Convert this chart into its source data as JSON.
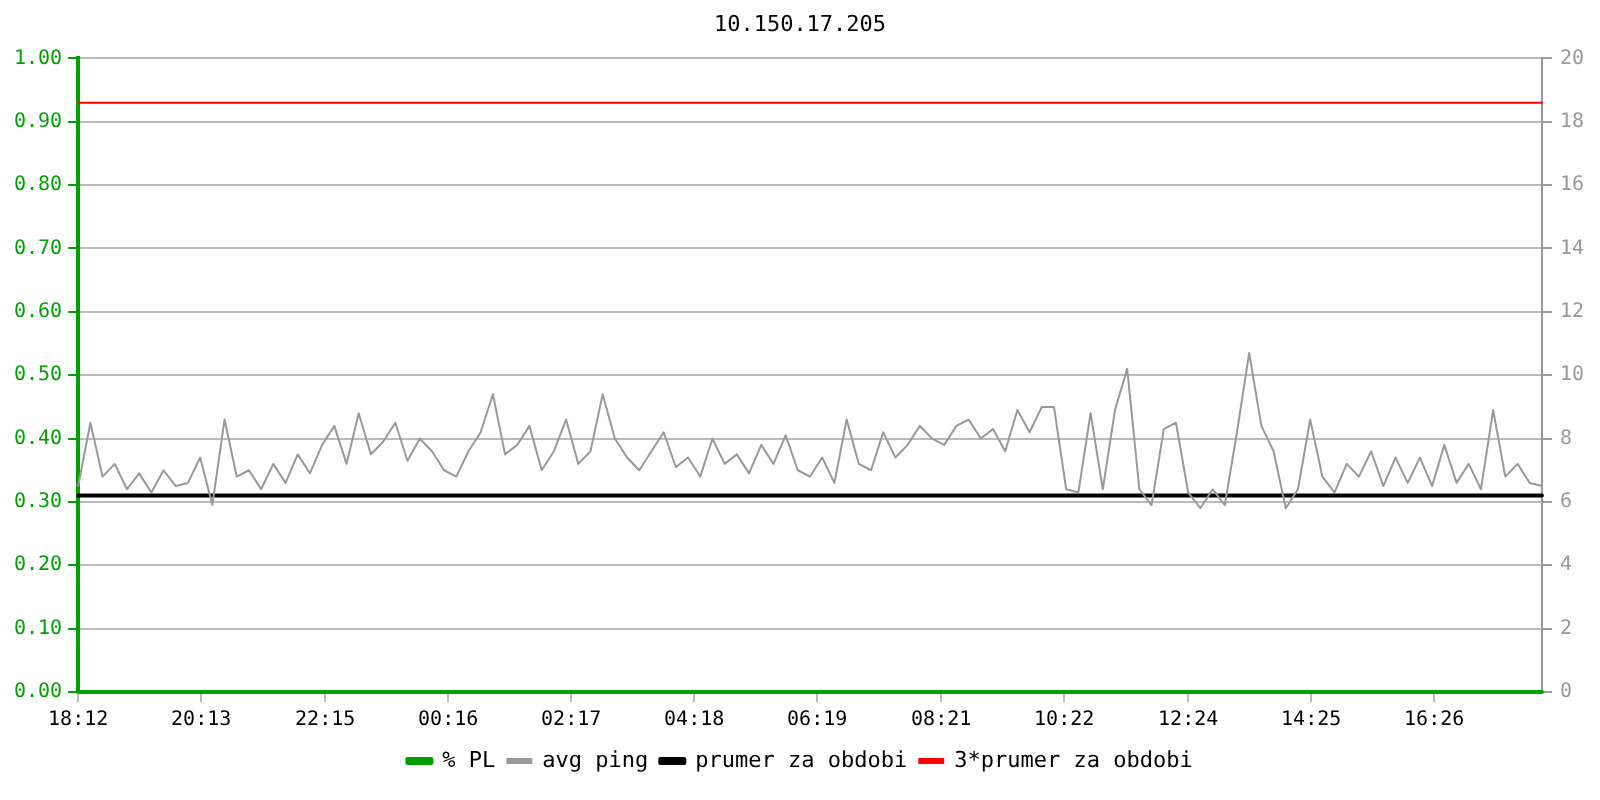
{
  "chart_data": {
    "type": "line",
    "title": "10.150.17.205",
    "xlim": [
      "--01-01T18:12",
      "--01-02T18:12"
    ],
    "xticks": [
      {
        "value": "--01-01T18:12",
        "label": "18:12"
      },
      {
        "value": "--01-01T20:13",
        "label": "20:13"
      },
      {
        "value": "--01-01T22:15",
        "label": "22:15"
      },
      {
        "value": "--01-02T00:16",
        "label": "00:16"
      },
      {
        "value": "--01-02T02:17",
        "label": "02:17"
      },
      {
        "value": "--01-02T04:18",
        "label": "04:18"
      },
      {
        "value": "--01-02T06:19",
        "label": "06:19"
      },
      {
        "value": "--01-02T08:21",
        "label": "08:21"
      },
      {
        "value": "--01-02T10:22",
        "label": "10:22"
      },
      {
        "value": "--01-02T12:24",
        "label": "12:24"
      },
      {
        "value": "--01-02T14:25",
        "label": "14:25"
      },
      {
        "value": "--01-02T16:26",
        "label": "16:26"
      }
    ],
    "ylim": [
      0,
      1
    ],
    "yticks": [
      {
        "value": 0,
        "label": "0.00"
      },
      {
        "value": 0.1,
        "label": "0.10"
      },
      {
        "value": 0.2,
        "label": "0.20"
      },
      {
        "value": 0.3,
        "label": "0.30"
      },
      {
        "value": 0.4,
        "label": "0.40"
      },
      {
        "value": 0.5,
        "label": "0.50"
      },
      {
        "value": 0.6,
        "label": "0.60"
      },
      {
        "value": 0.7,
        "label": "0.70"
      },
      {
        "value": 0.8,
        "label": "0.80"
      },
      {
        "value": 0.9,
        "label": "0.90"
      },
      {
        "value": 1,
        "label": "1.00"
      }
    ],
    "y2lim": [
      0,
      20
    ],
    "y2ticks": [
      0,
      2,
      4,
      6,
      8,
      10,
      12,
      14,
      16,
      18,
      20
    ],
    "grid": "y",
    "legend": "bottom",
    "marker": "none",
    "line_style": "solid",
    "series": [
      {
        "name": "% PL",
        "color": "#00a000",
        "axis": "y",
        "x": [
          "--01-01T18:12",
          "--01-02T18:12"
        ],
        "values": [
          0,
          0
        ]
      },
      {
        "name": "avg ping",
        "color": "#999999",
        "axis": "y2",
        "x": [
          "--01-01T18:12",
          "--01-01T18:24",
          "--01-01T18:36",
          "--01-01T18:48",
          "--01-01T19:00",
          "--01-01T19:12",
          "--01-01T19:24",
          "--01-01T19:36",
          "--01-01T19:48",
          "--01-01T20:00",
          "--01-01T20:12",
          "--01-01T20:24",
          "--01-01T20:36",
          "--01-01T20:48",
          "--01-01T21:00",
          "--01-01T21:12",
          "--01-01T21:24",
          "--01-01T21:36",
          "--01-01T21:48",
          "--01-01T22:00",
          "--01-01T22:12",
          "--01-01T22:24",
          "--01-01T22:36",
          "--01-01T22:48",
          "--01-01T23:00",
          "--01-01T23:12",
          "--01-01T23:24",
          "--01-01T23:36",
          "--01-01T23:48",
          "--01-02T00:00",
          "--01-02T00:12",
          "--01-02T00:24",
          "--01-02T00:36",
          "--01-02T00:48",
          "--01-02T01:00",
          "--01-02T01:12",
          "--01-02T01:24",
          "--01-02T01:36",
          "--01-02T01:48",
          "--01-02T02:00",
          "--01-02T02:12",
          "--01-02T02:24",
          "--01-02T02:36",
          "--01-02T02:48",
          "--01-02T03:00",
          "--01-02T03:12",
          "--01-02T03:24",
          "--01-02T03:36",
          "--01-02T03:48",
          "--01-02T04:00",
          "--01-02T04:12",
          "--01-02T04:24",
          "--01-02T04:36",
          "--01-02T04:48",
          "--01-02T05:00",
          "--01-02T05:12",
          "--01-02T05:24",
          "--01-02T05:36",
          "--01-02T05:48",
          "--01-02T06:00",
          "--01-02T06:12",
          "--01-02T06:24",
          "--01-02T06:36",
          "--01-02T06:48",
          "--01-02T07:00",
          "--01-02T07:12",
          "--01-02T07:24",
          "--01-02T07:36",
          "--01-02T07:48",
          "--01-02T08:00",
          "--01-02T08:12",
          "--01-02T08:24",
          "--01-02T08:36",
          "--01-02T08:48",
          "--01-02T09:00",
          "--01-02T09:12",
          "--01-02T09:24",
          "--01-02T09:36",
          "--01-02T09:48",
          "--01-02T10:00",
          "--01-02T10:12",
          "--01-02T10:24",
          "--01-02T10:36",
          "--01-02T10:48",
          "--01-02T11:00",
          "--01-02T11:12",
          "--01-02T11:24",
          "--01-02T11:36",
          "--01-02T11:48",
          "--01-02T12:00",
          "--01-02T12:12",
          "--01-02T12:24",
          "--01-02T12:36",
          "--01-02T12:48",
          "--01-02T13:00",
          "--01-02T13:12",
          "--01-02T13:24",
          "--01-02T13:36",
          "--01-02T13:48",
          "--01-02T14:00",
          "--01-02T14:12",
          "--01-02T14:24",
          "--01-02T14:36",
          "--01-02T14:48",
          "--01-02T15:00",
          "--01-02T15:12",
          "--01-02T15:24",
          "--01-02T15:36",
          "--01-02T15:48",
          "--01-02T16:00",
          "--01-02T16:12",
          "--01-02T16:24",
          "--01-02T16:36",
          "--01-02T16:48",
          "--01-02T17:00",
          "--01-02T17:12",
          "--01-02T17:24",
          "--01-02T17:36",
          "--01-02T17:48",
          "--01-02T18:00",
          "--01-02T18:12"
        ],
        "values": [
          6.5,
          8.5,
          6.8,
          7.2,
          6.4,
          6.9,
          6.3,
          7.0,
          6.5,
          6.6,
          7.4,
          5.9,
          8.6,
          6.8,
          7.0,
          6.4,
          7.2,
          6.6,
          7.5,
          6.9,
          7.8,
          8.4,
          7.2,
          8.8,
          7.5,
          7.9,
          8.5,
          7.3,
          8.0,
          7.6,
          7.0,
          6.8,
          7.6,
          8.2,
          9.4,
          7.5,
          7.8,
          8.4,
          7.0,
          7.6,
          8.6,
          7.2,
          7.6,
          9.4,
          8.0,
          7.4,
          7.0,
          7.6,
          8.2,
          7.1,
          7.4,
          6.8,
          8.0,
          7.2,
          7.5,
          6.9,
          7.8,
          7.2,
          8.1,
          7.0,
          6.8,
          7.4,
          6.6,
          8.6,
          7.2,
          7.0,
          8.2,
          7.4,
          7.8,
          8.4,
          8.0,
          7.8,
          8.4,
          8.6,
          8.0,
          8.3,
          7.6,
          8.9,
          8.2,
          9.0,
          9.0,
          6.4,
          6.3,
          8.8,
          6.4,
          8.9,
          10.2,
          6.4,
          5.9,
          8.3,
          8.5,
          6.3,
          5.8,
          6.4,
          5.9,
          8.2,
          10.7,
          8.4,
          7.6,
          5.8,
          6.4,
          8.6,
          6.8,
          6.3,
          7.2,
          6.8,
          7.6,
          6.5,
          7.4,
          6.6,
          7.4,
          6.5,
          7.8,
          6.6,
          7.2,
          6.4,
          8.9,
          6.8,
          7.2,
          6.6,
          6.5
        ]
      },
      {
        "name": "prumer za obdobi",
        "color": "#000000",
        "axis": "y2",
        "x": [
          "--01-01T18:12",
          "--01-02T18:12"
        ],
        "values": [
          6.2,
          6.2
        ]
      },
      {
        "name": "3*prumer za obdobi",
        "color": "#ff0000",
        "axis": "y2",
        "x": [
          "--01-01T18:12",
          "--01-02T18:12"
        ],
        "values": [
          18.6,
          18.6
        ]
      }
    ]
  }
}
